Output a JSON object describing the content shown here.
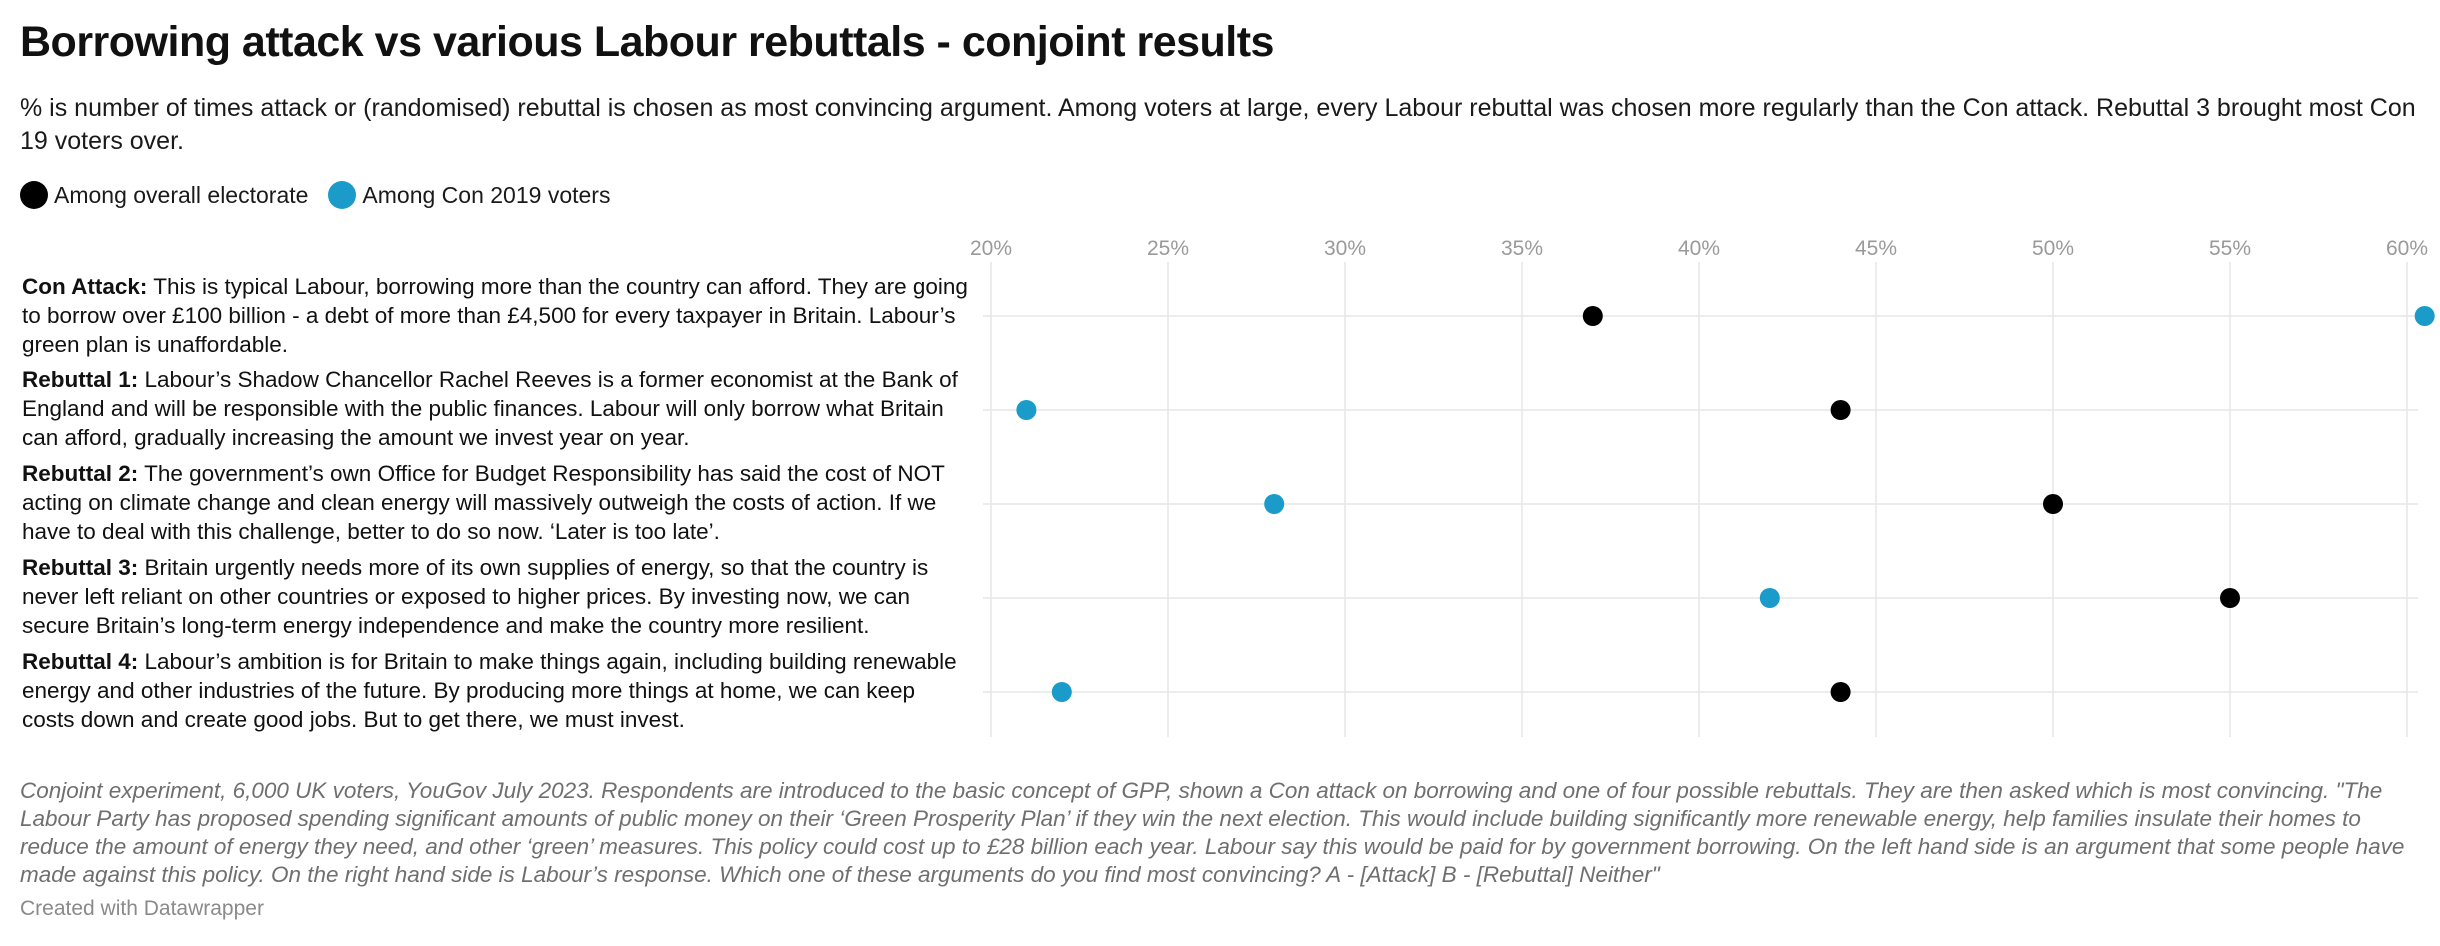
{
  "title": "Borrowing attack vs various Labour rebuttals - conjoint results",
  "subtitle": "% is number of times attack or (randomised) rebuttal is chosen as most convincing argument. Among voters at large, every Labour rebuttal was chosen more regularly than the Con attack. Rebuttal 3 brought most Con 19 voters over.",
  "legend": [
    {
      "label": "Among overall electorate",
      "color": "#000000"
    },
    {
      "label": "Among Con 2019 voters",
      "color": "#1a9bc9"
    }
  ],
  "note": "Conjoint experiment, 6,000 UK voters, YouGov July 2023. Respondents are introduced to the basic concept of GPP, shown a Con attack on borrowing and one of four possible rebuttals. They are then asked which is most convincing. \"The Labour Party has proposed spending significant amounts of public money on their ‘Green Prosperity Plan’ if they win the next election. This would include building significantly more renewable energy, help families insulate their homes to reduce the amount of energy they need, and other ‘green’ measures. This policy could cost up to £28 billion each year. Labour say this would be paid for by government borrowing. On the left hand side is an argument that some people have made against this policy. On the right hand side is Labour’s response. Which one of these arguments do you find most convincing? A - [Attack] B - [Rebuttal] Neither\"",
  "credit": "Created with Datawrapper",
  "chart_data": {
    "type": "scatter",
    "title": "Borrowing attack vs various Labour rebuttals - conjoint results",
    "x_unit": "%",
    "xlim": [
      20,
      60
    ],
    "x_ticks": [
      "20%",
      "25%",
      "30%",
      "35%",
      "40%",
      "45%",
      "50%",
      "55%",
      "60%"
    ],
    "x_tick_values": [
      20,
      25,
      30,
      35,
      40,
      45,
      50,
      55,
      60
    ],
    "grid": true,
    "legend_position": "top-left",
    "rows": [
      {
        "bold": "Con Attack:",
        "text": " This is typical Labour, borrowing more than the country can afford. They are going to borrow over £100 billion - a debt of more than £4,500 for every taxpayer in Britain. Labour’s green plan is unaffordable."
      },
      {
        "bold": "Rebuttal 1:",
        "text": " Labour’s Shadow Chancellor Rachel Reeves is a former economist at the Bank of England and will be responsible with the public finances. Labour will only borrow what Britain can afford, gradually increasing the amount we invest year on year."
      },
      {
        "bold": "Rebuttal 2:",
        "text": " The government’s own Office for Budget Responsibility has said the cost of NOT acting on climate change and clean energy will massively outweigh the costs of action. If we have to deal with this challenge, better to do so now. ‘Later is too late’."
      },
      {
        "bold": "Rebuttal 3:",
        "text": " Britain urgently needs more of its own supplies of energy, so that the country is never left reliant on other countries or exposed to higher prices. By investing now, we can secure Britain’s long-term energy independence and make the country more resilient."
      },
      {
        "bold": "Rebuttal 4:",
        "text": " Labour’s ambition is for Britain to make things again, including building renewable energy and other industries of the future. By producing more things at home, we can keep costs down and create good jobs. But to get there, we must invest."
      }
    ],
    "series": [
      {
        "name": "Among overall electorate",
        "color": "#000000",
        "values": [
          37,
          44,
          50,
          55,
          44
        ]
      },
      {
        "name": "Among Con 2019 voters",
        "color": "#1a9bc9",
        "values": [
          60.5,
          21,
          28,
          42,
          22
        ]
      }
    ]
  }
}
